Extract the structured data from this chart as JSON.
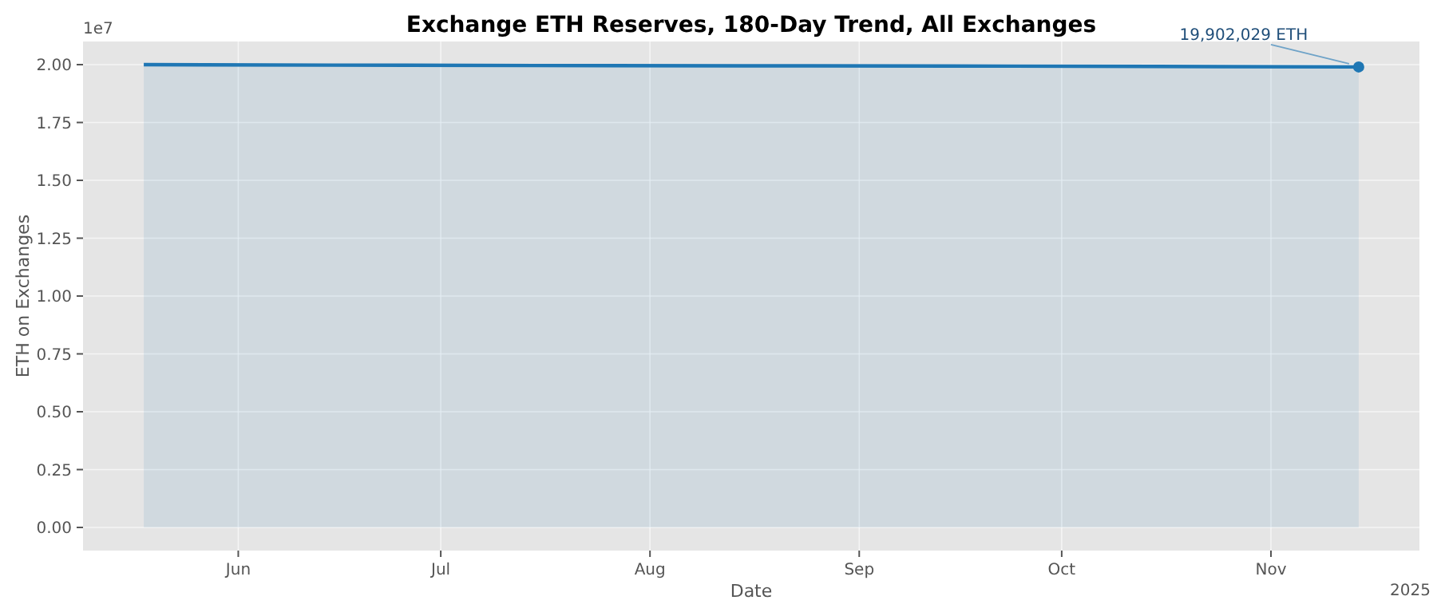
{
  "chart_data": {
    "type": "area",
    "title": "Exchange ETH Reserves, 180-Day Trend, All Exchanges",
    "xlabel": "Date",
    "ylabel": "ETH on Exchanges",
    "x": [
      "2025-05-18",
      "2025-06-15",
      "2025-07-15",
      "2025-08-15",
      "2025-09-15",
      "2025-10-15",
      "2025-11-14"
    ],
    "series": [
      {
        "color": "#1f77b4",
        "values": [
          2.0,
          1.998,
          1.996,
          1.995,
          1.994,
          1.992,
          1.99
        ]
      },
      {
        "type": "scatter",
        "color": "#1f77b4",
        "x": [
          "2025-11-14"
        ],
        "values": [
          1.99
        ]
      }
    ],
    "xlim": [
      "2025-05-09",
      "2025-11-23"
    ],
    "xticks": [
      {
        "value": "2025-06-01",
        "label": "Jun"
      },
      {
        "value": "2025-07-01",
        "label": "Jul"
      },
      {
        "value": "2025-08-01",
        "label": "Aug"
      },
      {
        "value": "2025-09-01",
        "label": "Sep"
      },
      {
        "value": "2025-10-01",
        "label": "Oct"
      },
      {
        "value": "2025-11-01",
        "label": "Nov"
      }
    ],
    "ylim": [
      -0.1,
      2.1
    ],
    "yticks": [
      {
        "value": 0,
        "label": "0.00"
      },
      0.25,
      {
        "value": 0.5,
        "label": "0.50"
      },
      0.75,
      {
        "value": 1,
        "label": "1.00"
      },
      1.25,
      {
        "value": 1.5,
        "label": "1.50"
      },
      1.75,
      {
        "value": 2,
        "label": "2.00"
      }
    ],
    "grid": true,
    "annotations": [
      {
        "text": "19,902,029 ETH",
        "x": "2025-11-14",
        "y": 1.99
      },
      "1e7",
      "2025"
    ]
  }
}
